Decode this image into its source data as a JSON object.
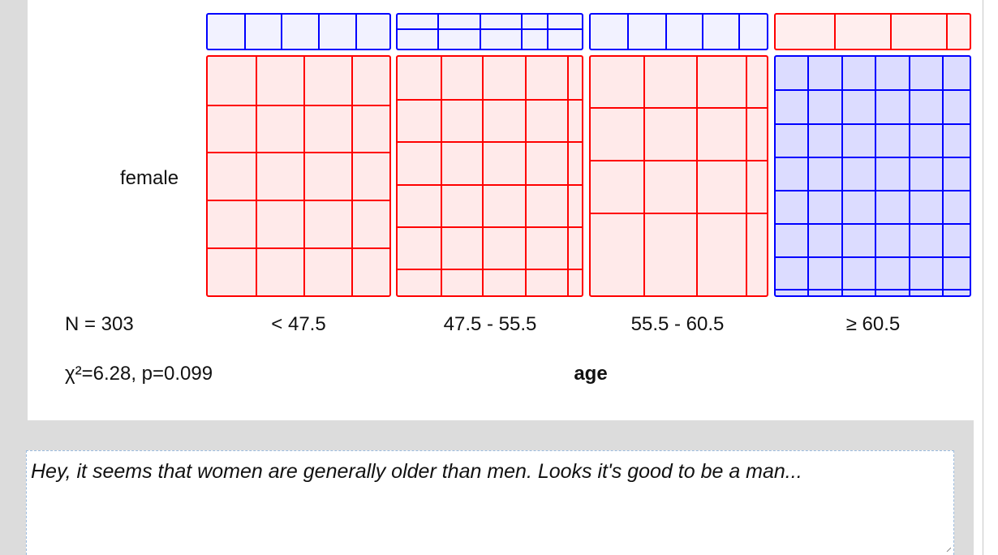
{
  "note": {
    "text": "Hey, it seems that women are generally older than men. Looks it's good to be a man..."
  },
  "colors": {
    "positive_residual": "#ff0000",
    "negative_residual": "#0000ff",
    "positive_fill": "#ffeaea",
    "negative_fill": "#dcdcff"
  },
  "chart_data": {
    "type": "mosaic",
    "xlabel": "age",
    "categories": [
      "< 47.5",
      "47.5 - 55.5",
      "55.5 - 60.5",
      "≥ 60.5"
    ],
    "rows_visible": [
      "female"
    ],
    "n_label": "N = 303",
    "stat_label": "χ²=6.28, p=0.099",
    "female_residual_sign": [
      "positive",
      "positive",
      "positive",
      "negative"
    ],
    "row_above_residual_sign": [
      "negative",
      "negative",
      "negative",
      "positive"
    ]
  }
}
